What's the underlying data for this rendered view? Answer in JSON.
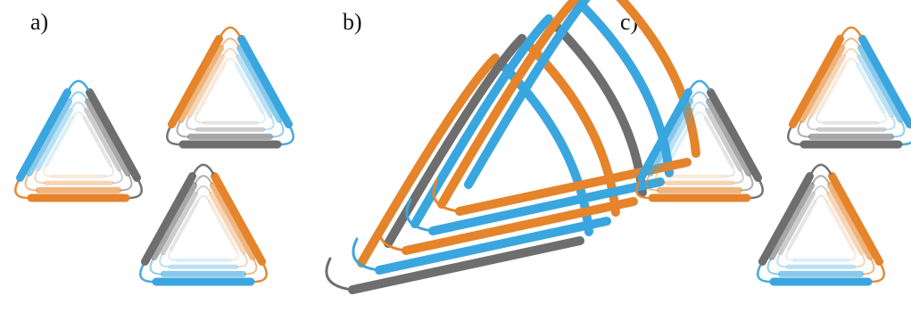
{
  "labels": {
    "a": "a)",
    "b": "b)",
    "c": "c)"
  },
  "colors": {
    "blue": "#3aa6df",
    "orange": "#e5842a",
    "gray": "#6e6e6e",
    "background": "#ffffff"
  },
  "groups": [
    {
      "id": "a",
      "knots": [
        {
          "name": "knot-a-left",
          "sides": [
            "gray",
            "orange",
            "blue"
          ]
        },
        {
          "name": "knot-a-top",
          "sides": [
            "blue",
            "gray",
            "orange"
          ]
        },
        {
          "name": "knot-a-bottom",
          "sides": [
            "orange",
            "blue",
            "gray"
          ]
        }
      ]
    },
    {
      "id": "c",
      "knots": [
        {
          "name": "knot-c-left",
          "sides": [
            "gray",
            "orange",
            "blue"
          ]
        },
        {
          "name": "knot-c-top",
          "sides": [
            "blue",
            "gray",
            "orange"
          ]
        },
        {
          "name": "knot-c-bottom",
          "sides": [
            "orange",
            "blue",
            "gray"
          ]
        }
      ]
    }
  ]
}
